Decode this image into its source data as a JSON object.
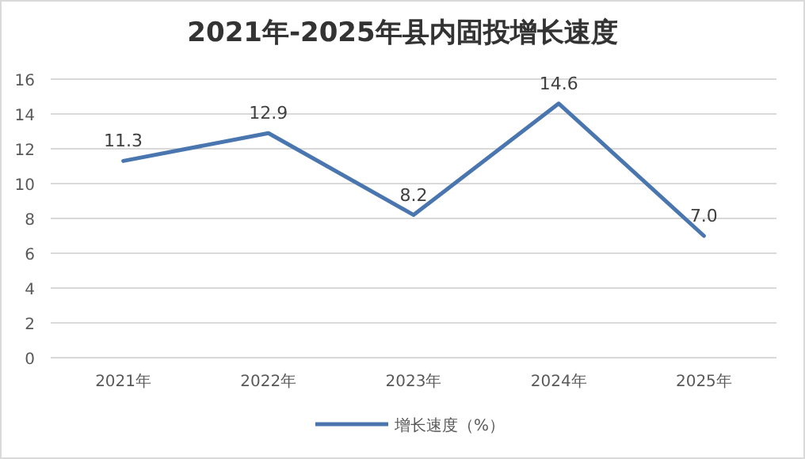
{
  "chart_data": {
    "type": "line",
    "title": "2021年-2025年县内固投增长速度",
    "categories": [
      "2021年",
      "2022年",
      "2023年",
      "2024年",
      "2025年"
    ],
    "series": [
      {
        "name": "增长速度（%）",
        "color": "#4a76b0",
        "values": [
          11.3,
          12.9,
          8.2,
          14.6,
          7.0
        ],
        "value_labels": [
          "11.3",
          "12.9",
          "8.2",
          "14.6",
          "7.0"
        ]
      }
    ],
    "ylim": [
      0,
      16
    ],
    "yticks": [
      0,
      2,
      4,
      6,
      8,
      10,
      12,
      14,
      16
    ],
    "grid": "y",
    "legend": "bottom"
  }
}
